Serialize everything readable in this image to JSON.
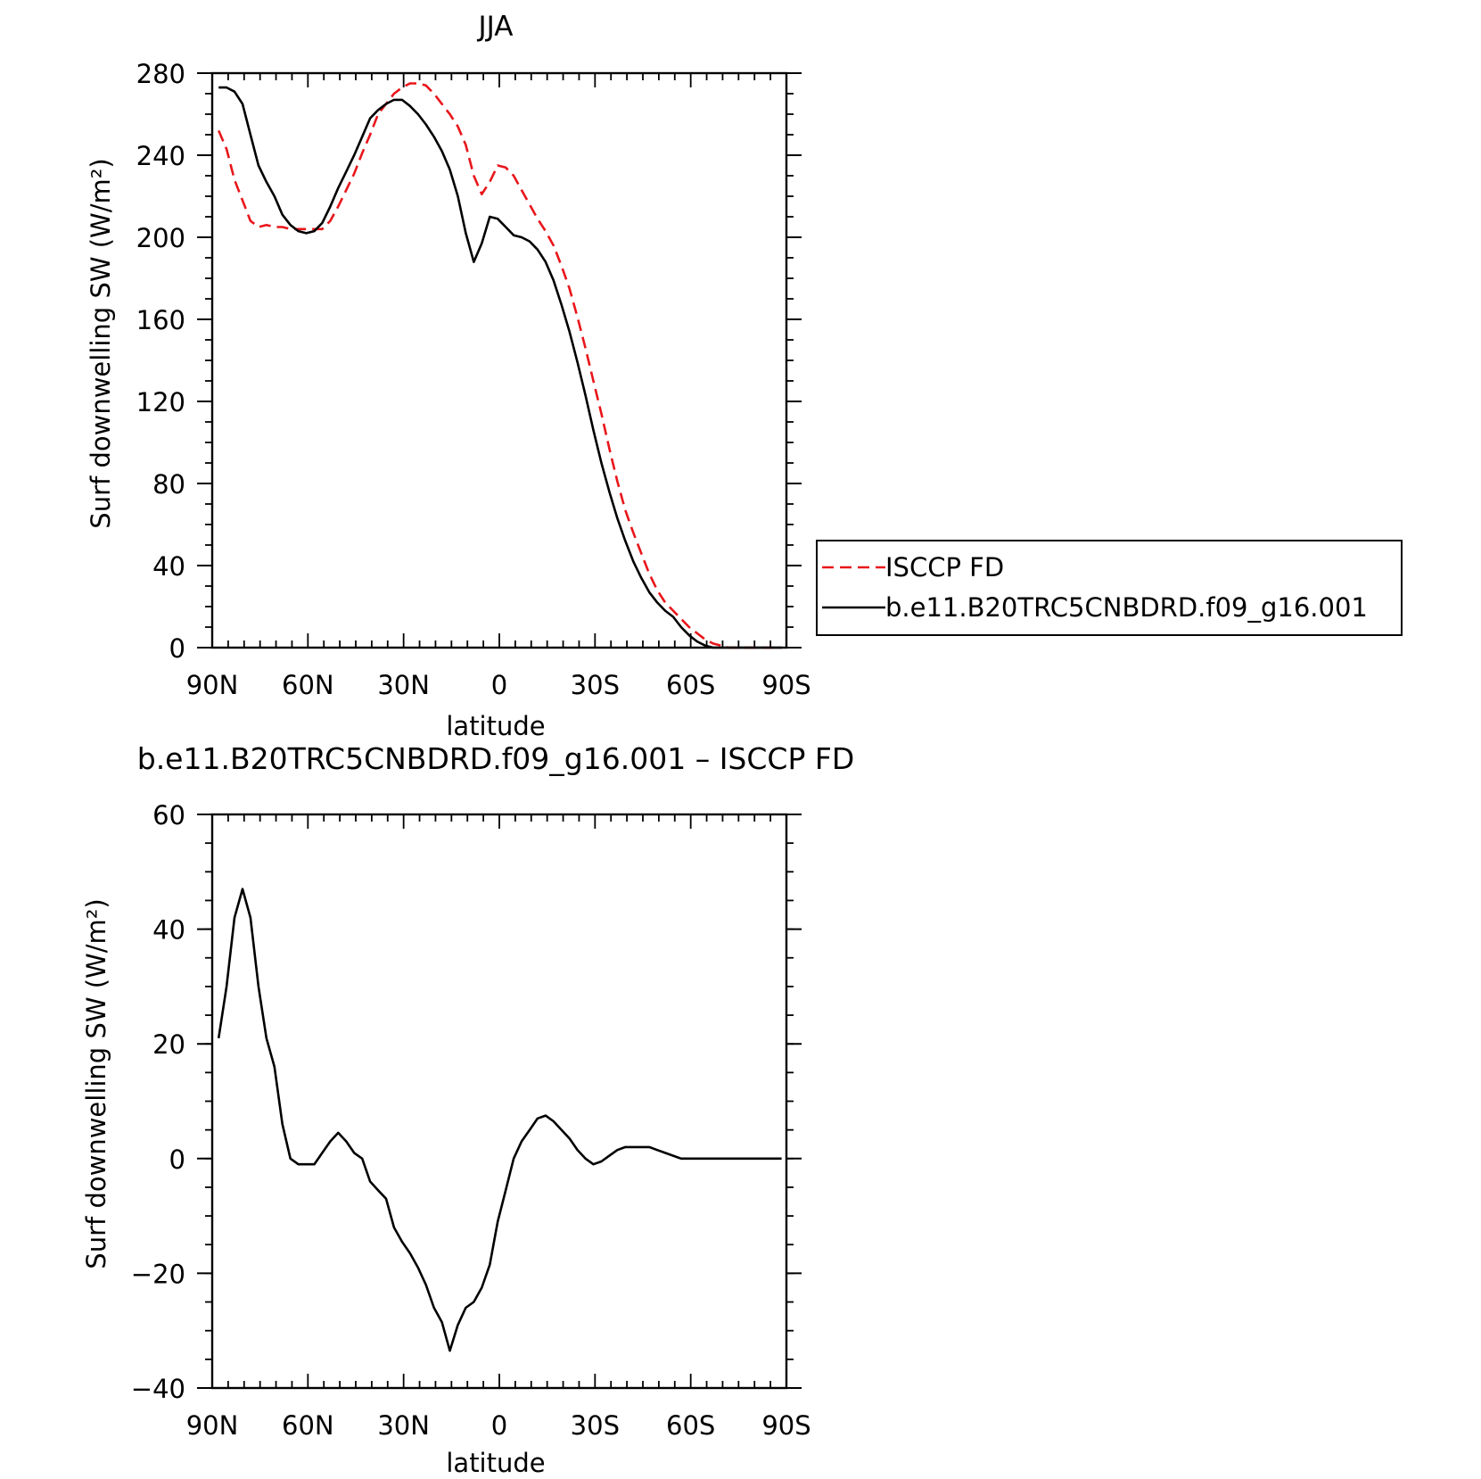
{
  "chart_data": [
    {
      "type": "line",
      "title": "JJA",
      "xlabel": "latitude",
      "ylabel": "Surf downwelling SW (W/m²)",
      "xlim": [
        90,
        -90
      ],
      "ylim": [
        0,
        280
      ],
      "xticks": [
        {
          "value": 90,
          "label": "90N"
        },
        {
          "value": 60,
          "label": "60N"
        },
        {
          "value": 30,
          "label": "30N"
        },
        {
          "value": 0,
          "label": "0"
        },
        {
          "value": -30,
          "label": "30S"
        },
        {
          "value": -60,
          "label": "60S"
        },
        {
          "value": -90,
          "label": "90S"
        }
      ],
      "yticks": [
        0,
        40,
        80,
        120,
        160,
        200,
        240,
        280
      ],
      "legend": {
        "placement": "right"
      },
      "series": [
        {
          "name": "ISCCP FD",
          "color": "#e8161b",
          "dash": "dashed",
          "points": [
            [
              88,
              252
            ],
            [
              85.5,
              243
            ],
            [
              83,
              228
            ],
            [
              80.5,
              218
            ],
            [
              78,
              208
            ],
            [
              75.5,
              205
            ],
            [
              73,
              206
            ],
            [
              70.5,
              205
            ],
            [
              68,
              205
            ],
            [
              65.5,
              204
            ],
            [
              63,
              204
            ],
            [
              60.5,
              204
            ],
            [
              58,
              204
            ],
            [
              55.5,
              204
            ],
            [
              53,
              208
            ],
            [
              50.5,
              215
            ],
            [
              48,
              223
            ],
            [
              45.5,
              231
            ],
            [
              43,
              241
            ],
            [
              40.5,
              250
            ],
            [
              38,
              260
            ],
            [
              35.5,
              265
            ],
            [
              33,
              270
            ],
            [
              30.5,
              273
            ],
            [
              28,
              275
            ],
            [
              25.5,
              275
            ],
            [
              23,
              274
            ],
            [
              20.5,
              270
            ],
            [
              18,
              265
            ],
            [
              15.5,
              260
            ],
            [
              13,
              254
            ],
            [
              10.5,
              245
            ],
            [
              8,
              230
            ],
            [
              5.5,
              221
            ],
            [
              3,
              227
            ],
            [
              0.5,
              235
            ],
            [
              -2,
              234
            ],
            [
              -4.5,
              230
            ],
            [
              -7,
              223
            ],
            [
              -9.5,
              216
            ],
            [
              -12,
              209
            ],
            [
              -14.5,
              203
            ],
            [
              -17,
              196
            ],
            [
              -19.5,
              186
            ],
            [
              -22,
              175
            ],
            [
              -24.5,
              161
            ],
            [
              -27,
              146
            ],
            [
              -29.5,
              130
            ],
            [
              -32,
              114
            ],
            [
              -34.5,
              97
            ],
            [
              -37,
              81
            ],
            [
              -39.5,
              67
            ],
            [
              -42,
              56
            ],
            [
              -44.5,
              46
            ],
            [
              -47,
              36
            ],
            [
              -49.5,
              28
            ],
            [
              -52,
              22
            ],
            [
              -54.5,
              18
            ],
            [
              -57,
              14
            ],
            [
              -59.5,
              10
            ],
            [
              -62,
              7
            ],
            [
              -64.5,
              4
            ],
            [
              -67,
              2
            ],
            [
              -69.5,
              1
            ],
            [
              -72,
              0
            ],
            [
              -74.5,
              0
            ],
            [
              -77,
              0
            ],
            [
              -79.5,
              0
            ],
            [
              -82,
              0
            ],
            [
              -84.5,
              0
            ],
            [
              -87,
              0
            ],
            [
              -88.5,
              0
            ]
          ]
        },
        {
          "name": "b.e11.B20TRC5CNBDRD.f09_g16.001",
          "color": "#000000",
          "dash": "solid",
          "points": [
            [
              88,
              273
            ],
            [
              85.5,
              273
            ],
            [
              83,
              271
            ],
            [
              80.5,
              265
            ],
            [
              78,
              250
            ],
            [
              75.5,
              235
            ],
            [
              73,
              227
            ],
            [
              70.5,
              220
            ],
            [
              68,
              211
            ],
            [
              65.5,
              206
            ],
            [
              63,
              203
            ],
            [
              60.5,
              202
            ],
            [
              58,
              203
            ],
            [
              55.5,
              207
            ],
            [
              53,
              215
            ],
            [
              50.5,
              224
            ],
            [
              48,
              232
            ],
            [
              45.5,
              240
            ],
            [
              43,
              249
            ],
            [
              40.5,
              258
            ],
            [
              38,
              262
            ],
            [
              35.5,
              265
            ],
            [
              33,
              267
            ],
            [
              30.5,
              267
            ],
            [
              28,
              264
            ],
            [
              25.5,
              260
            ],
            [
              23,
              255
            ],
            [
              20.5,
              249
            ],
            [
              18,
              242
            ],
            [
              15.5,
              233
            ],
            [
              13,
              220
            ],
            [
              10.5,
              202
            ],
            [
              8,
              188
            ],
            [
              5.5,
              197
            ],
            [
              3,
              210
            ],
            [
              0.5,
              209
            ],
            [
              -2,
              205
            ],
            [
              -4.5,
              201
            ],
            [
              -7,
              200
            ],
            [
              -9.5,
              198
            ],
            [
              -12,
              194
            ],
            [
              -14.5,
              188
            ],
            [
              -17,
              179
            ],
            [
              -19.5,
              167
            ],
            [
              -22,
              154
            ],
            [
              -24.5,
              139
            ],
            [
              -27,
              123
            ],
            [
              -29.5,
              106
            ],
            [
              -32,
              90
            ],
            [
              -34.5,
              76
            ],
            [
              -37,
              63
            ],
            [
              -39.5,
              52
            ],
            [
              -42,
              42
            ],
            [
              -44.5,
              34
            ],
            [
              -47,
              27
            ],
            [
              -49.5,
              22
            ],
            [
              -52,
              18
            ],
            [
              -54.5,
              15
            ],
            [
              -57,
              10
            ],
            [
              -59.5,
              6
            ],
            [
              -62,
              3
            ],
            [
              -64.5,
              1
            ],
            [
              -67,
              0
            ],
            [
              -69.5,
              0
            ],
            [
              -72,
              0
            ],
            [
              -74.5,
              0
            ],
            [
              -77,
              0
            ],
            [
              -79.5,
              0
            ],
            [
              -82,
              0
            ],
            [
              -84.5,
              0
            ],
            [
              -87,
              0
            ],
            [
              -88.5,
              0
            ]
          ]
        }
      ]
    },
    {
      "type": "line",
      "title": "b.e11.B20TRC5CNBDRD.f09_g16.001 – ISCCP FD",
      "xlabel": "latitude",
      "ylabel": "Surf downwelling SW (W/m²)",
      "xlim": [
        90,
        -90
      ],
      "ylim": [
        -40,
        60
      ],
      "xticks": [
        {
          "value": 90,
          "label": "90N"
        },
        {
          "value": 60,
          "label": "60N"
        },
        {
          "value": 30,
          "label": "30N"
        },
        {
          "value": 0,
          "label": "0"
        },
        {
          "value": -30,
          "label": "30S"
        },
        {
          "value": -60,
          "label": "60S"
        },
        {
          "value": -90,
          "label": "90S"
        }
      ],
      "yticks": [
        {
          "value": -40,
          "label": "−40"
        },
        {
          "value": -20,
          "label": "−20"
        },
        {
          "value": 0,
          "label": "0"
        },
        {
          "value": 20,
          "label": "20"
        },
        {
          "value": 40,
          "label": "40"
        },
        {
          "value": 60,
          "label": "60"
        }
      ],
      "series": [
        {
          "color": "#000000",
          "dash": "solid",
          "points": [
            [
              88,
              21
            ],
            [
              85.5,
              30
            ],
            [
              83,
              42
            ],
            [
              80.5,
              47
            ],
            [
              78,
              42
            ],
            [
              75.5,
              30
            ],
            [
              73,
              21
            ],
            [
              70.5,
              16
            ],
            [
              68,
              6
            ],
            [
              65.5,
              0
            ],
            [
              63,
              -1
            ],
            [
              60.5,
              -1
            ],
            [
              58,
              -1
            ],
            [
              55.5,
              1
            ],
            [
              53,
              3
            ],
            [
              50.5,
              4.5
            ],
            [
              48,
              3
            ],
            [
              45.5,
              1
            ],
            [
              43,
              0
            ],
            [
              40.5,
              -4
            ],
            [
              38,
              -5.5
            ],
            [
              35.5,
              -7
            ],
            [
              33,
              -12
            ],
            [
              30.5,
              -14.5
            ],
            [
              28,
              -16.5
            ],
            [
              25.5,
              -19
            ],
            [
              23,
              -22
            ],
            [
              20.5,
              -26
            ],
            [
              18,
              -28.5
            ],
            [
              15.5,
              -33.5
            ],
            [
              13,
              -29
            ],
            [
              10.5,
              -26
            ],
            [
              8,
              -25
            ],
            [
              5.5,
              -22.5
            ],
            [
              3,
              -18.5
            ],
            [
              0.5,
              -11
            ],
            [
              -2,
              -5.5
            ],
            [
              -4.5,
              0
            ],
            [
              -7,
              3
            ],
            [
              -9.5,
              5
            ],
            [
              -12,
              7
            ],
            [
              -14.5,
              7.5
            ],
            [
              -17,
              6.5
            ],
            [
              -19.5,
              5
            ],
            [
              -22,
              3.5
            ],
            [
              -24.5,
              1.5
            ],
            [
              -27,
              0
            ],
            [
              -29.5,
              -1
            ],
            [
              -32,
              -0.5
            ],
            [
              -34.5,
              0.5
            ],
            [
              -37,
              1.5
            ],
            [
              -39.5,
              2
            ],
            [
              -42,
              2
            ],
            [
              -44.5,
              2
            ],
            [
              -47,
              2
            ],
            [
              -49.5,
              1.5
            ],
            [
              -52,
              1
            ],
            [
              -54.5,
              0.5
            ],
            [
              -57,
              0
            ],
            [
              -59.5,
              0
            ],
            [
              -62,
              0
            ],
            [
              -64.5,
              0
            ],
            [
              -67,
              0
            ],
            [
              -69.5,
              0
            ],
            [
              -72,
              0
            ],
            [
              -74.5,
              0
            ],
            [
              -77,
              0
            ],
            [
              -79.5,
              0
            ],
            [
              -82,
              0
            ],
            [
              -84.5,
              0
            ],
            [
              -87,
              0
            ],
            [
              -88.5,
              0
            ]
          ]
        }
      ]
    }
  ]
}
